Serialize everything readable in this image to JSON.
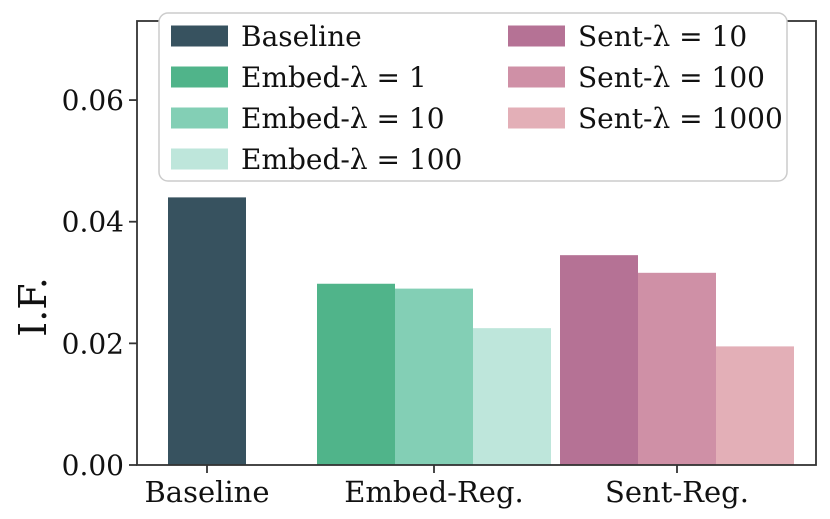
{
  "chart_data": {
    "type": "bar",
    "title": "",
    "xlabel": "",
    "ylabel": "I.F.",
    "ylim": [
      0,
      0.073
    ],
    "yticks": [
      0.0,
      0.02,
      0.04,
      0.06
    ],
    "ytick_labels": [
      "0.00",
      "0.02",
      "0.04",
      "0.06"
    ],
    "categories": [
      "Baseline",
      "Embed-Reg.",
      "Sent-Reg."
    ],
    "grid": false,
    "legend_position": "upper-left-inside, 2 columns",
    "groups": [
      {
        "category": "Baseline",
        "bars": [
          {
            "label": "Baseline",
            "value": 0.044,
            "color": "#37525F"
          }
        ]
      },
      {
        "category": "Embed-Reg.",
        "bars": [
          {
            "label": "Embed-λ = 1",
            "value": 0.0298,
            "color": "#50B48A"
          },
          {
            "label": "Embed-λ = 10",
            "value": 0.029,
            "color": "#83CFB5"
          },
          {
            "label": "Embed-λ = 100",
            "value": 0.0225,
            "color": "#BEE6DB"
          }
        ]
      },
      {
        "category": "Sent-Reg.",
        "bars": [
          {
            "label": "Sent-λ = 10",
            "value": 0.0345,
            "color": "#B57295"
          },
          {
            "label": "Sent-λ = 100",
            "value": 0.0316,
            "color": "#CF90A6"
          },
          {
            "label": "Sent-λ = 1000",
            "value": 0.0195,
            "color": "#E3AFB7"
          }
        ]
      }
    ],
    "legend": {
      "columns": [
        [
          {
            "label": "Baseline",
            "color": "#37525F"
          },
          {
            "label": "Embed-λ = 1",
            "color": "#50B48A"
          },
          {
            "label": "Embed-λ = 10",
            "color": "#83CFB5"
          },
          {
            "label": "Embed-λ = 100",
            "color": "#BEE6DB"
          }
        ],
        [
          {
            "label": "Sent-λ = 10",
            "color": "#B57295"
          },
          {
            "label": "Sent-λ = 100",
            "color": "#CF90A6"
          },
          {
            "label": "Sent-λ = 1000",
            "color": "#E3AFB7"
          }
        ]
      ]
    },
    "colors": {
      "axis": "#333333",
      "text": "#111111",
      "legend_border": "#cccccc",
      "legend_bg": "#ffffff"
    }
  }
}
